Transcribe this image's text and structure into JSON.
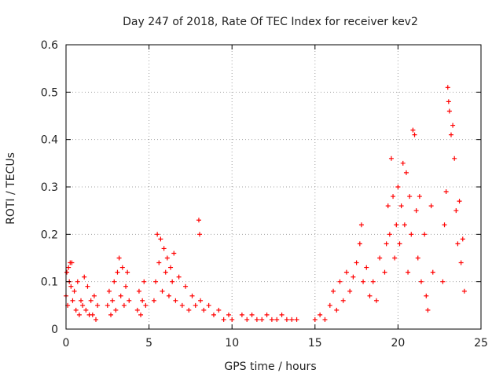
{
  "chart_data": {
    "type": "scatter",
    "title": "Day 247 of 2018, Rate Of TEC Index for receiver kev2",
    "xlabel": "GPS time / hours",
    "ylabel": "ROTI / TECUs",
    "xlim": [
      0,
      25
    ],
    "ylim": [
      0,
      0.6
    ],
    "xticks": [
      0,
      5,
      10,
      15,
      20,
      25
    ],
    "yticks": [
      0,
      0.1,
      0.2,
      0.3,
      0.4,
      0.5,
      0.6
    ],
    "xtick_labels": [
      "0",
      "5",
      "10",
      "15",
      "20",
      "25"
    ],
    "ytick_labels": [
      "0",
      "0.1",
      "0.2",
      "0.3",
      "0.4",
      "0.5",
      "0.6"
    ],
    "grid": true,
    "marker": "+",
    "color": "#ff0000",
    "series": [
      {
        "name": "ROTI",
        "points": [
          [
            0.0,
            0.07
          ],
          [
            0.05,
            0.12
          ],
          [
            0.1,
            0.05
          ],
          [
            0.15,
            0.13
          ],
          [
            0.2,
            0.1
          ],
          [
            0.25,
            0.14
          ],
          [
            0.3,
            0.09
          ],
          [
            0.35,
            0.14
          ],
          [
            0.4,
            0.06
          ],
          [
            0.5,
            0.08
          ],
          [
            0.6,
            0.04
          ],
          [
            0.7,
            0.1
          ],
          [
            0.8,
            0.03
          ],
          [
            0.9,
            0.06
          ],
          [
            1.0,
            0.05
          ],
          [
            1.1,
            0.11
          ],
          [
            1.2,
            0.04
          ],
          [
            1.3,
            0.09
          ],
          [
            1.4,
            0.03
          ],
          [
            1.5,
            0.06
          ],
          [
            1.6,
            0.03
          ],
          [
            1.7,
            0.07
          ],
          [
            1.8,
            0.02
          ],
          [
            1.9,
            0.05
          ],
          [
            2.5,
            0.05
          ],
          [
            2.6,
            0.08
          ],
          [
            2.7,
            0.03
          ],
          [
            2.8,
            0.06
          ],
          [
            2.9,
            0.1
          ],
          [
            3.0,
            0.04
          ],
          [
            3.1,
            0.12
          ],
          [
            3.2,
            0.15
          ],
          [
            3.3,
            0.07
          ],
          [
            3.4,
            0.13
          ],
          [
            3.5,
            0.05
          ],
          [
            3.6,
            0.09
          ],
          [
            3.7,
            0.12
          ],
          [
            3.8,
            0.06
          ],
          [
            4.3,
            0.04
          ],
          [
            4.4,
            0.08
          ],
          [
            4.5,
            0.03
          ],
          [
            4.6,
            0.06
          ],
          [
            4.7,
            0.1
          ],
          [
            4.8,
            0.05
          ],
          [
            5.3,
            0.06
          ],
          [
            5.4,
            0.1
          ],
          [
            5.5,
            0.2
          ],
          [
            5.6,
            0.14
          ],
          [
            5.7,
            0.19
          ],
          [
            5.8,
            0.08
          ],
          [
            5.9,
            0.17
          ],
          [
            6.0,
            0.12
          ],
          [
            6.1,
            0.15
          ],
          [
            6.2,
            0.07
          ],
          [
            6.3,
            0.13
          ],
          [
            6.4,
            0.1
          ],
          [
            6.5,
            0.16
          ],
          [
            6.6,
            0.06
          ],
          [
            6.8,
            0.11
          ],
          [
            7.0,
            0.05
          ],
          [
            7.2,
            0.09
          ],
          [
            7.4,
            0.04
          ],
          [
            7.6,
            0.07
          ],
          [
            7.8,
            0.05
          ],
          [
            8.0,
            0.23
          ],
          [
            8.05,
            0.2
          ],
          [
            8.1,
            0.06
          ],
          [
            8.3,
            0.04
          ],
          [
            8.6,
            0.05
          ],
          [
            8.9,
            0.03
          ],
          [
            9.2,
            0.04
          ],
          [
            9.5,
            0.02
          ],
          [
            9.8,
            0.03
          ],
          [
            10.0,
            0.02
          ],
          [
            10.6,
            0.03
          ],
          [
            10.9,
            0.02
          ],
          [
            11.2,
            0.03
          ],
          [
            11.5,
            0.02
          ],
          [
            11.8,
            0.02
          ],
          [
            12.1,
            0.03
          ],
          [
            12.4,
            0.02
          ],
          [
            12.7,
            0.02
          ],
          [
            13.0,
            0.03
          ],
          [
            13.3,
            0.02
          ],
          [
            13.6,
            0.02
          ],
          [
            13.9,
            0.02
          ],
          [
            15.0,
            0.02
          ],
          [
            15.3,
            0.03
          ],
          [
            15.6,
            0.02
          ],
          [
            15.9,
            0.05
          ],
          [
            16.1,
            0.08
          ],
          [
            16.3,
            0.04
          ],
          [
            16.5,
            0.1
          ],
          [
            16.7,
            0.06
          ],
          [
            16.9,
            0.12
          ],
          [
            17.1,
            0.08
          ],
          [
            17.3,
            0.11
          ],
          [
            17.5,
            0.14
          ],
          [
            17.7,
            0.18
          ],
          [
            17.8,
            0.22
          ],
          [
            17.9,
            0.1
          ],
          [
            18.1,
            0.13
          ],
          [
            18.3,
            0.07
          ],
          [
            18.5,
            0.1
          ],
          [
            18.7,
            0.06
          ],
          [
            18.9,
            0.15
          ],
          [
            19.2,
            0.12
          ],
          [
            19.3,
            0.18
          ],
          [
            19.4,
            0.26
          ],
          [
            19.5,
            0.2
          ],
          [
            19.6,
            0.36
          ],
          [
            19.7,
            0.28
          ],
          [
            19.8,
            0.15
          ],
          [
            19.9,
            0.22
          ],
          [
            20.0,
            0.3
          ],
          [
            20.1,
            0.18
          ],
          [
            20.2,
            0.26
          ],
          [
            20.3,
            0.35
          ],
          [
            20.4,
            0.22
          ],
          [
            20.5,
            0.33
          ],
          [
            20.6,
            0.12
          ],
          [
            20.7,
            0.28
          ],
          [
            20.8,
            0.2
          ],
          [
            20.9,
            0.42
          ],
          [
            21.0,
            0.41
          ],
          [
            21.1,
            0.25
          ],
          [
            21.2,
            0.15
          ],
          [
            21.3,
            0.28
          ],
          [
            21.4,
            0.1
          ],
          [
            21.6,
            0.2
          ],
          [
            21.7,
            0.07
          ],
          [
            21.8,
            0.04
          ],
          [
            22.0,
            0.26
          ],
          [
            22.1,
            0.12
          ],
          [
            22.7,
            0.1
          ],
          [
            22.8,
            0.22
          ],
          [
            22.9,
            0.29
          ],
          [
            23.0,
            0.51
          ],
          [
            23.05,
            0.48
          ],
          [
            23.1,
            0.46
          ],
          [
            23.2,
            0.41
          ],
          [
            23.3,
            0.43
          ],
          [
            23.4,
            0.36
          ],
          [
            23.5,
            0.25
          ],
          [
            23.6,
            0.18
          ],
          [
            23.7,
            0.27
          ],
          [
            23.8,
            0.14
          ],
          [
            23.9,
            0.19
          ],
          [
            24.0,
            0.08
          ]
        ]
      }
    ]
  }
}
